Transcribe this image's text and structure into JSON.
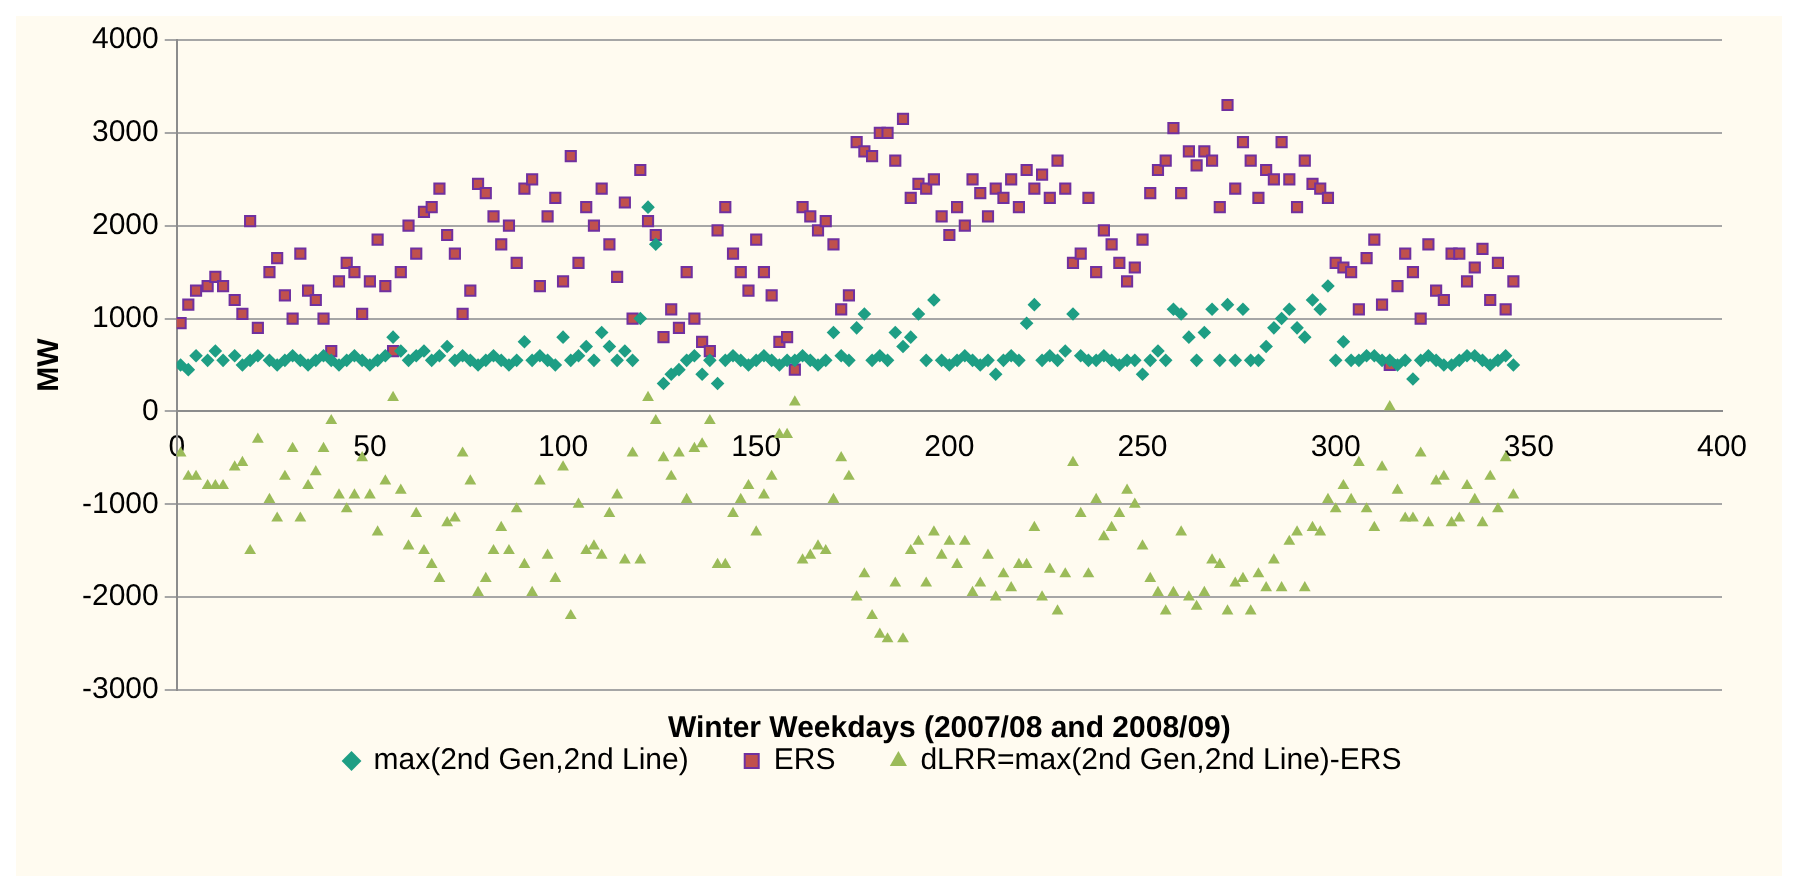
{
  "chart_data": {
    "type": "scatter",
    "xlabel": "Winter Weekdays (2007/08 and 2008/09)",
    "ylabel": "MW",
    "x": [
      1,
      3,
      5,
      8,
      10,
      12,
      15,
      17,
      19,
      21,
      24,
      26,
      28,
      30,
      32,
      34,
      36,
      38,
      40,
      42,
      44,
      46,
      48,
      50,
      52,
      54,
      56,
      58,
      60,
      62,
      64,
      66,
      68,
      70,
      72,
      74,
      76,
      78,
      80,
      82,
      84,
      86,
      88,
      90,
      92,
      94,
      96,
      98,
      100,
      102,
      104,
      106,
      108,
      110,
      112,
      114,
      116,
      118,
      120,
      122,
      124,
      126,
      128,
      130,
      132,
      134,
      136,
      138,
      140,
      142,
      144,
      146,
      148,
      150,
      152,
      154,
      156,
      158,
      160,
      162,
      164,
      166,
      168,
      170,
      172,
      174,
      176,
      178,
      180,
      182,
      184,
      186,
      188,
      190,
      192,
      194,
      196,
      198,
      200,
      202,
      204,
      206,
      208,
      210,
      212,
      214,
      216,
      218,
      220,
      222,
      224,
      226,
      228,
      230,
      232,
      234,
      236,
      238,
      240,
      242,
      244,
      246,
      248,
      250,
      252,
      254,
      256,
      258,
      260,
      262,
      264,
      266,
      268,
      270,
      272,
      274,
      276,
      278,
      280,
      282,
      284,
      286,
      288,
      290,
      292,
      294,
      296,
      298,
      300,
      302,
      304,
      306,
      308,
      310,
      312,
      314,
      316,
      318,
      320,
      322,
      324,
      326,
      328,
      330,
      332,
      334,
      336,
      338,
      340,
      342,
      344,
      346
    ],
    "series": [
      {
        "name": "max(2nd Gen,2nd Line)",
        "color": "#1e9e84",
        "marker": "diamond",
        "values": [
          500,
          450,
          600,
          550,
          650,
          550,
          600,
          500,
          550,
          600,
          550,
          500,
          550,
          600,
          550,
          500,
          550,
          600,
          550,
          500,
          550,
          600,
          550,
          500,
          550,
          600,
          800,
          650,
          550,
          600,
          650,
          550,
          600,
          700,
          550,
          600,
          550,
          500,
          550,
          600,
          550,
          500,
          550,
          750,
          550,
          600,
          550,
          500,
          800,
          550,
          600,
          700,
          550,
          850,
          700,
          550,
          650,
          550,
          1000,
          2200,
          1800,
          300,
          400,
          450,
          550,
          600,
          400,
          550,
          300,
          550,
          600,
          550,
          500,
          550,
          600,
          550,
          500,
          550,
          550,
          600,
          550,
          500,
          550,
          850,
          600,
          550,
          900,
          1050,
          550,
          600,
          550,
          850,
          700,
          800,
          1050,
          550,
          1200,
          550,
          500,
          550,
          600,
          550,
          500,
          550,
          400,
          550,
          600,
          550,
          950,
          1150,
          550,
          600,
          550,
          650,
          1050,
          600,
          550,
          550,
          600,
          550,
          500,
          550,
          550,
          400,
          550,
          650,
          550,
          1100,
          1050,
          800,
          550,
          850,
          1100,
          550,
          1150,
          550,
          1100,
          550,
          550,
          700,
          900,
          1000,
          1100,
          900,
          800,
          1200,
          1100,
          1350,
          550,
          750,
          550,
          550,
          600,
          600,
          550,
          550,
          500,
          550,
          350,
          550,
          600,
          550,
          500,
          500,
          550,
          600,
          600,
          550,
          500,
          550,
          600,
          500
        ]
      },
      {
        "name": "ERS",
        "color": "#c0504d",
        "marker": "square",
        "values": [
          950,
          1150,
          1300,
          1350,
          1450,
          1350,
          1200,
          1050,
          2050,
          900,
          1500,
          1650,
          1250,
          1000,
          1700,
          1300,
          1200,
          1000,
          650,
          1400,
          1600,
          1500,
          1050,
          1400,
          1850,
          1350,
          650,
          1500,
          2000,
          1700,
          2150,
          2200,
          2400,
          1900,
          1700,
          1050,
          1300,
          2450,
          2350,
          2100,
          1800,
          2000,
          1600,
          2400,
          2500,
          1350,
          2100,
          2300,
          1400,
          2750,
          1600,
          2200,
          2000,
          2400,
          1800,
          1450,
          2250,
          1000,
          2600,
          2050,
          1900,
          800,
          1100,
          900,
          1500,
          1000,
          750,
          650,
          1950,
          2200,
          1700,
          1500,
          1300,
          1850,
          1500,
          1250,
          750,
          800,
          450,
          2200,
          2100,
          1950,
          2050,
          1800,
          1100,
          1250,
          2900,
          2800,
          2750,
          3000,
          3000,
          2700,
          3150,
          2300,
          2450,
          2400,
          2500,
          2100,
          1900,
          2200,
          2000,
          2500,
          2350,
          2100,
          2400,
          2300,
          2500,
          2200,
          2600,
          2400,
          2550,
          2300,
          2700,
          2400,
          1600,
          1700,
          2300,
          1500,
          1950,
          1800,
          1600,
          1400,
          1550,
          1850,
          2350,
          2600,
          2700,
          3050,
          2350,
          2800,
          2650,
          2800,
          2700,
          2200,
          3300,
          2400,
          2900,
          2700,
          2300,
          2600,
          2500,
          2900,
          2500,
          2200,
          2700,
          2450,
          2400,
          2300,
          1600,
          1550,
          1500,
          1100,
          1650,
          1850,
          1150,
          500,
          1350,
          1700,
          1500,
          1000,
          1800,
          1300,
          1200,
          1700,
          1700,
          1400,
          1550,
          1750,
          1200,
          1600,
          1100,
          1400
        ]
      },
      {
        "name": "dLRR=max(2nd Gen,2nd Line)-ERS",
        "color": "#9bbb59",
        "marker": "triangle",
        "values": [
          -450,
          -700,
          -700,
          -800,
          -800,
          -800,
          -600,
          -550,
          -1500,
          -300,
          -950,
          -1150,
          -700,
          -400,
          -1150,
          -800,
          -650,
          -400,
          -100,
          -900,
          -1050,
          -900,
          -500,
          -900,
          -1300,
          -750,
          150,
          -850,
          -1450,
          -1100,
          -1500,
          -1650,
          -1800,
          -1200,
          -1150,
          -450,
          -750,
          -1950,
          -1800,
          -1500,
          -1250,
          -1500,
          -1050,
          -1650,
          -1950,
          -750,
          -1550,
          -1800,
          -600,
          -2200,
          -1000,
          -1500,
          -1450,
          -1550,
          -1100,
          -900,
          -1600,
          -450,
          -1600,
          150,
          -100,
          -500,
          -700,
          -450,
          -950,
          -400,
          -350,
          -100,
          -1650,
          -1650,
          -1100,
          -950,
          -800,
          -1300,
          -900,
          -700,
          -250,
          -250,
          100,
          -1600,
          -1550,
          -1450,
          -1500,
          -950,
          -500,
          -700,
          -2000,
          -1750,
          -2200,
          -2400,
          -2450,
          -1850,
          -2450,
          -1500,
          -1400,
          -1850,
          -1300,
          -1550,
          -1400,
          -1650,
          -1400,
          -1950,
          -1850,
          -1550,
          -2000,
          -1750,
          -1900,
          -1650,
          -1650,
          -1250,
          -2000,
          -1700,
          -2150,
          -1750,
          -550,
          -1100,
          -1750,
          -950,
          -1350,
          -1250,
          -1100,
          -850,
          -1000,
          -1450,
          -1800,
          -1950,
          -2150,
          -1950,
          -1300,
          -2000,
          -2100,
          -1950,
          -1600,
          -1650,
          -2150,
          -1850,
          -1800,
          -2150,
          -1750,
          -1900,
          -1600,
          -1900,
          -1400,
          -1300,
          -1900,
          -1250,
          -1300,
          -950,
          -1050,
          -800,
          -950,
          -550,
          -1050,
          -1250,
          -600,
          50,
          -850,
          -1150,
          -1150,
          -450,
          -1200,
          -750,
          -700,
          -1200,
          -1150,
          -800,
          -950,
          -1200,
          -700,
          -1050,
          -500,
          -900
        ]
      }
    ],
    "xlim": [
      0,
      400
    ],
    "xticks": [
      0,
      50,
      100,
      150,
      200,
      250,
      300,
      350,
      400
    ],
    "ylim": [
      -3000,
      4000
    ],
    "yticks": [
      -3000,
      -2000,
      -1000,
      0,
      1000,
      2000,
      3000,
      4000
    ],
    "grid": "y",
    "legend": "bottom"
  }
}
